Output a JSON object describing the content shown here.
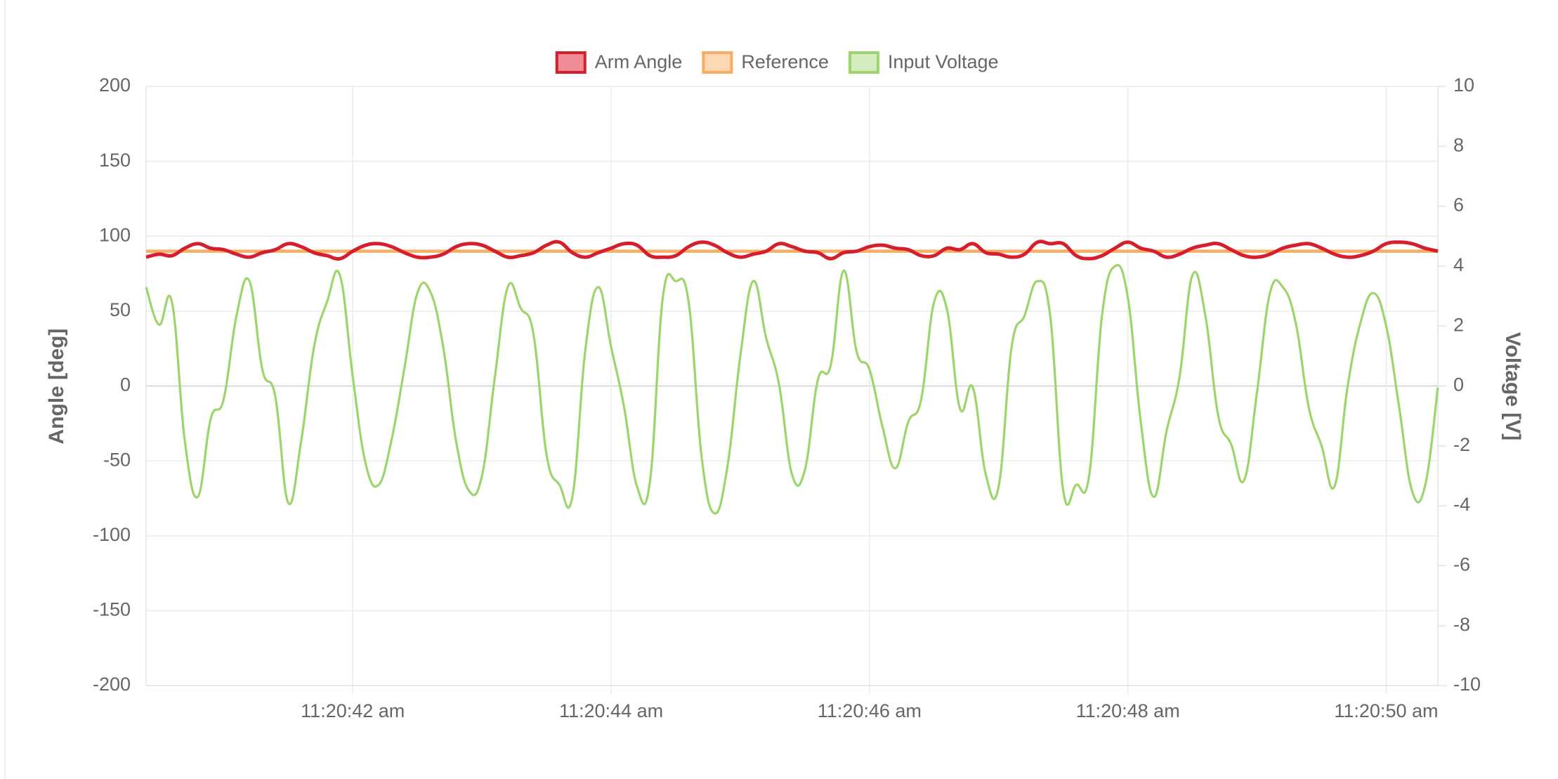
{
  "chart_data": {
    "type": "line",
    "y_label": "Angle [deg]",
    "y2_label": "Voltage [V]",
    "x": [
      40.4,
      40.5,
      40.6,
      40.7,
      40.8,
      40.9,
      41.0,
      41.1,
      41.2,
      41.3,
      41.4,
      41.5,
      41.6,
      41.7,
      41.8,
      41.9,
      42.0,
      42.1,
      42.2,
      42.3,
      42.4,
      42.5,
      42.6,
      42.7,
      42.8,
      42.9,
      43.0,
      43.1,
      43.2,
      43.3,
      43.4,
      43.5,
      43.6,
      43.7,
      43.8,
      43.9,
      44.0,
      44.1,
      44.2,
      44.3,
      44.4,
      44.5,
      44.6,
      44.7,
      44.8,
      44.9,
      45.0,
      45.1,
      45.2,
      45.3,
      45.4,
      45.5,
      45.6,
      45.7,
      45.8,
      45.9,
      46.0,
      46.1,
      46.2,
      46.3,
      46.4,
      46.5,
      46.6,
      46.7,
      46.8,
      46.9,
      47.0,
      47.1,
      47.2,
      47.3,
      47.4,
      47.5,
      47.6,
      47.7,
      47.8,
      47.9,
      48.0,
      48.1,
      48.2,
      48.3,
      48.4,
      48.5,
      48.6,
      48.7,
      48.8,
      48.9,
      49.0,
      49.1,
      49.2,
      49.3,
      49.4,
      49.5,
      49.6,
      49.7,
      49.8,
      49.9,
      50.0,
      50.1,
      50.2,
      50.3,
      50.4
    ],
    "series": [
      {
        "name": "Arm Angle",
        "color": "#d61f2c",
        "fill": "#f08c95",
        "axis": "y",
        "values": [
          86,
          88,
          87,
          92,
          95,
          92,
          91,
          88,
          86,
          89,
          91,
          95,
          93,
          89,
          87,
          85,
          90,
          94,
          95,
          93,
          89,
          86,
          86,
          88,
          93,
          95,
          94,
          90,
          86,
          87,
          89,
          94,
          96,
          89,
          86,
          89,
          92,
          95,
          94,
          87,
          86,
          87,
          93,
          96,
          94,
          89,
          86,
          88,
          90,
          95,
          93,
          90,
          89,
          85,
          89,
          90,
          93,
          94,
          92,
          91,
          87,
          87,
          92,
          91,
          95,
          89,
          88,
          86,
          88,
          96,
          95,
          95,
          87,
          85,
          87,
          92,
          96,
          92,
          90,
          86,
          88,
          92,
          94,
          95,
          91,
          87,
          86,
          88,
          92,
          94,
          95,
          92,
          88,
          86,
          87,
          90,
          95,
          96,
          95,
          92,
          90
        ]
      },
      {
        "name": "Reference",
        "color": "#f7ad63",
        "fill": "#fcd9b4",
        "axis": "y",
        "values": [
          90,
          90,
          90,
          90,
          90,
          90,
          90,
          90,
          90,
          90,
          90,
          90,
          90,
          90,
          90,
          90,
          90,
          90,
          90,
          90,
          90,
          90,
          90,
          90,
          90,
          90,
          90,
          90,
          90,
          90,
          90,
          90,
          90,
          90,
          90,
          90,
          90,
          90,
          90,
          90,
          90,
          90,
          90,
          90,
          90,
          90,
          90,
          90,
          90,
          90,
          90,
          90,
          90,
          90,
          90,
          90,
          90,
          90,
          90,
          90,
          90,
          90,
          90,
          90,
          90,
          90,
          90,
          90,
          90,
          90,
          90,
          90,
          90,
          90,
          90,
          90,
          90,
          90,
          90,
          90,
          90,
          90,
          90,
          90,
          90,
          90,
          90,
          90,
          90,
          90,
          90,
          90,
          90,
          90,
          90,
          90,
          90,
          90,
          90,
          90,
          90
        ]
      },
      {
        "name": "Input Voltage",
        "color": "#9ed46c",
        "fill": "#d4edc0",
        "axis": "y2",
        "values": [
          3.3,
          2.05,
          2.8,
          -1.85,
          -3.7,
          -1.1,
          -0.45,
          2.35,
          3.5,
          0.55,
          -0.35,
          -3.9,
          -1.85,
          1.3,
          2.8,
          3.7,
          0.3,
          -2.6,
          -3.3,
          -1.8,
          0.6,
          3.1,
          3.15,
          1.3,
          -1.85,
          -3.5,
          -3.0,
          0.3,
          3.3,
          2.6,
          1.7,
          -2.3,
          -3.3,
          -3.7,
          1.2,
          3.3,
          1.3,
          -0.7,
          -3.35,
          -3.2,
          2.95,
          3.5,
          2.8,
          -2.35,
          -4.25,
          -2.7,
          1.0,
          3.5,
          1.6,
          0.05,
          -2.95,
          -2.8,
          0.2,
          0.7,
          3.85,
          1.15,
          0.55,
          -1.35,
          -2.75,
          -1.2,
          -0.45,
          2.8,
          2.55,
          -0.75,
          -0.05,
          -2.95,
          -3.35,
          1.3,
          2.35,
          3.5,
          2.3,
          -3.5,
          -3.3,
          -3.0,
          2.35,
          4.0,
          2.95,
          -1.2,
          -3.7,
          -1.5,
          0.3,
          3.7,
          2.35,
          -1.0,
          -1.95,
          -3.15,
          -0.2,
          3.1,
          3.3,
          2.1,
          -0.7,
          -2.0,
          -3.35,
          -0.05,
          2.1,
          3.1,
          2.0,
          -0.7,
          -3.5,
          -3.35,
          -0.05
        ]
      }
    ],
    "xlim": [
      40.4,
      50.4
    ],
    "xticks": [
      {
        "value": 42,
        "label": "11:20:42 am"
      },
      {
        "value": 44,
        "label": "11:20:44 am"
      },
      {
        "value": 46,
        "label": "11:20:46 am"
      },
      {
        "value": 48,
        "label": "11:20:48 am"
      },
      {
        "value": 50,
        "label": "11:20:50 am"
      }
    ],
    "ylim": [
      -200,
      200
    ],
    "yticks": [
      -200,
      -150,
      -100,
      -50,
      0,
      50,
      100,
      150,
      200
    ],
    "y2lim": [
      -10,
      10
    ],
    "y2ticks": [
      -10,
      -8,
      -6,
      -4,
      -2,
      0,
      2,
      4,
      6,
      8,
      10
    ],
    "grid": true,
    "legend": "top"
  }
}
